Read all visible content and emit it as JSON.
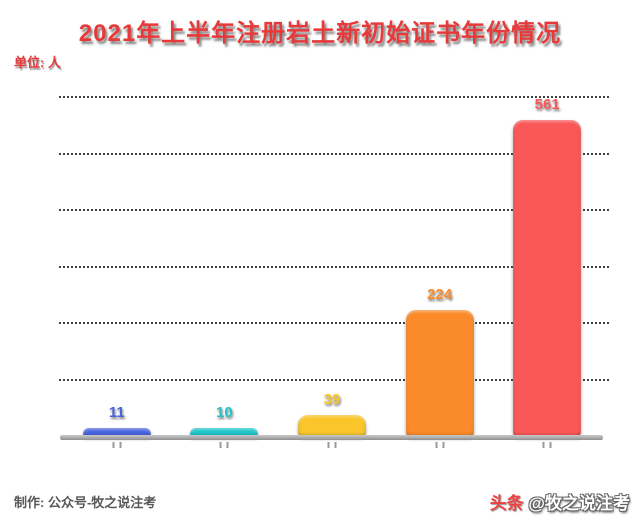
{
  "title": "2021年上半年注册岩土新初始证书年份情况",
  "unit_label": "单位: 人",
  "chart_data": {
    "type": "bar",
    "title": "2021年上半年注册岩土新初始证书年份情况",
    "unit": "单位: 人",
    "categories": [
      "",
      "",
      "",
      "",
      ""
    ],
    "values": [
      11,
      10,
      39,
      224,
      561
    ],
    "bar_colors": [
      "#4a63e0",
      "#1ec6c9",
      "#f9c52a",
      "#fb8b2a",
      "#f95758"
    ],
    "ylim": [
      0,
      600
    ],
    "gridline_step": 100,
    "gridline_count": 6,
    "grid_style": "horizontal-dotted",
    "legend": "none",
    "value_labels": true,
    "xlabel": "",
    "ylabel": ""
  },
  "footer": {
    "credit": "制作: 公众号-牧之说注考",
    "watermark_brand": "头条",
    "watermark_handle": "@牧之说注考"
  },
  "colors": {
    "title_red": "#e8393a",
    "axis_gray": "#ababab",
    "gridline_dark": "#3f3f3f",
    "credit_gray": "#595959",
    "watermark_red": "#f04142",
    "watermark_white": "#ffffff",
    "background": "#ffffff"
  }
}
